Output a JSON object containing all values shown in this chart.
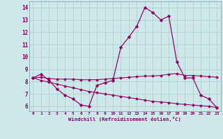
{
  "xlabel": "Windchill (Refroidissement éolien,°C)",
  "bg_color": "#cce8e8",
  "grid_color": "#aacccc",
  "line_color": "#990066",
  "x_hours": [
    0,
    1,
    2,
    3,
    4,
    5,
    6,
    7,
    8,
    9,
    10,
    11,
    12,
    13,
    14,
    15,
    16,
    17,
    18,
    19,
    20,
    21,
    22,
    23
  ],
  "temp_line": [
    8.3,
    8.6,
    8.1,
    7.4,
    6.9,
    6.6,
    6.1,
    6.0,
    7.7,
    7.9,
    8.1,
    10.8,
    11.6,
    12.5,
    14.0,
    13.6,
    13.0,
    13.3,
    9.6,
    8.3,
    8.3,
    6.9,
    6.6,
    5.9
  ],
  "line2": [
    8.3,
    8.35,
    8.25,
    8.2,
    8.2,
    8.2,
    8.15,
    8.15,
    8.15,
    8.2,
    8.25,
    8.3,
    8.35,
    8.4,
    8.45,
    8.45,
    8.5,
    8.6,
    8.65,
    8.5,
    8.5,
    8.45,
    8.4,
    8.35
  ],
  "line3": [
    8.3,
    8.1,
    7.95,
    7.8,
    7.65,
    7.5,
    7.35,
    7.2,
    7.1,
    7.0,
    6.9,
    6.8,
    6.7,
    6.6,
    6.5,
    6.4,
    6.35,
    6.3,
    6.2,
    6.15,
    6.1,
    6.05,
    6.0,
    5.9
  ],
  "ylim": [
    5.6,
    14.5
  ],
  "xlim": [
    -0.5,
    23.5
  ],
  "yticks": [
    6,
    7,
    8,
    9,
    10,
    11,
    12,
    13,
    14
  ],
  "xticks": [
    0,
    1,
    2,
    3,
    4,
    5,
    6,
    7,
    8,
    9,
    10,
    11,
    12,
    13,
    14,
    15,
    16,
    17,
    18,
    19,
    20,
    21,
    22,
    23
  ]
}
